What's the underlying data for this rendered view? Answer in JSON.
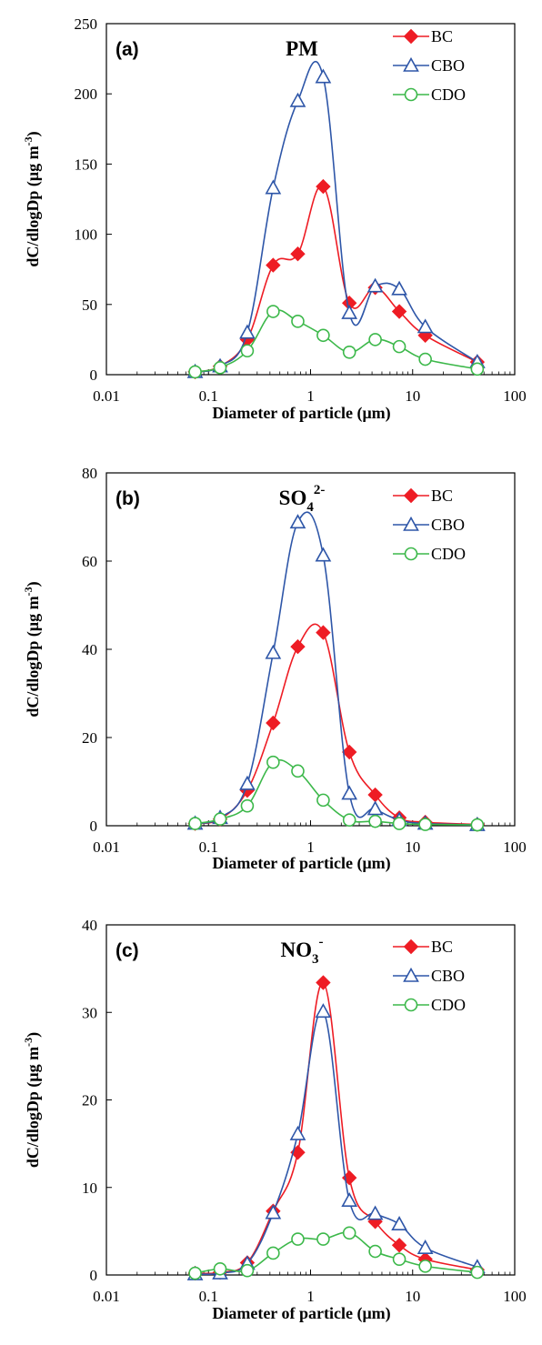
{
  "colors": {
    "BC": "#ee1c24",
    "CBO": "#2e56a8",
    "CDO": "#3cb84a",
    "axis": "#000000"
  },
  "chart_data": [
    {
      "type": "line",
      "panel_label": "(a)",
      "title": "PM",
      "title_sup": "",
      "title_sub": "",
      "xlabel": "Diameter of particle (μm)",
      "ylabel": "dC/dlogDp (μg m",
      "ylabel_sup": "-3",
      "ylabel_end": ")",
      "xscale": "log",
      "xlim": [
        0.01,
        100
      ],
      "ylim": [
        0,
        250
      ],
      "xticks": [
        0.01,
        0.1,
        1,
        10,
        100
      ],
      "xtick_labels": [
        "0.01",
        "0.1",
        "1",
        "10",
        "100"
      ],
      "yticks": [
        0,
        50,
        100,
        150,
        200,
        250
      ],
      "ytick_labels": [
        "0",
        "50",
        "100",
        "150",
        "200",
        "250"
      ],
      "legend": "top-right",
      "grid": false,
      "series": [
        {
          "name": "BC",
          "marker": "diamond",
          "x": [
            0.074,
            0.13,
            0.24,
            0.43,
            0.75,
            1.33,
            2.4,
            4.3,
            7.4,
            13.3,
            43
          ],
          "y": [
            2,
            6,
            25,
            78,
            86,
            134,
            51,
            62,
            45,
            28,
            9
          ]
        },
        {
          "name": "CBO",
          "marker": "triangle",
          "x": [
            0.074,
            0.13,
            0.24,
            0.43,
            0.75,
            1.33,
            2.4,
            4.3,
            7.4,
            13.3,
            43
          ],
          "y": [
            2,
            6,
            30,
            133,
            195,
            212,
            44,
            63,
            61,
            34,
            9
          ]
        },
        {
          "name": "CDO",
          "marker": "circle",
          "x": [
            0.074,
            0.13,
            0.24,
            0.43,
            0.75,
            1.33,
            2.4,
            4.3,
            7.4,
            13.3,
            43
          ],
          "y": [
            2,
            5,
            17,
            45,
            38,
            28,
            16,
            25,
            20,
            11,
            4
          ]
        }
      ]
    },
    {
      "type": "line",
      "panel_label": "(b)",
      "title": "SO",
      "title_sub": "4",
      "title_sup": "2-",
      "xlabel": "Diameter of particle (μm)",
      "ylabel": "dC/dlogDp (μg m",
      "ylabel_sup": "-3",
      "ylabel_end": ")",
      "xscale": "log",
      "xlim": [
        0.01,
        100
      ],
      "ylim": [
        0,
        80
      ],
      "xticks": [
        0.01,
        0.1,
        1,
        10,
        100
      ],
      "xtick_labels": [
        "0.01",
        "0.1",
        "1",
        "10",
        "100"
      ],
      "yticks": [
        0,
        20,
        40,
        60,
        80
      ],
      "ytick_labels": [
        "0",
        "20",
        "40",
        "60",
        "80"
      ],
      "legend": "top-right",
      "grid": false,
      "series": [
        {
          "name": "BC",
          "marker": "diamond",
          "x": [
            0.074,
            0.13,
            0.24,
            0.43,
            0.75,
            1.33,
            2.4,
            4.3,
            7.4,
            13.3,
            43
          ],
          "y": [
            0.5,
            1.5,
            8,
            23.3,
            40.6,
            43.8,
            16.7,
            7,
            1.8,
            0.8,
            0.3
          ]
        },
        {
          "name": "CBO",
          "marker": "triangle",
          "x": [
            0.074,
            0.13,
            0.24,
            0.43,
            0.75,
            1.33,
            2.4,
            4.3,
            7.4,
            13.3,
            43
          ],
          "y": [
            0.5,
            1.8,
            9.5,
            39.2,
            68.8,
            61.3,
            7.3,
            3.8,
            1.3,
            0.5,
            0.2
          ]
        },
        {
          "name": "CDO",
          "marker": "circle",
          "x": [
            0.074,
            0.13,
            0.24,
            0.43,
            0.75,
            1.33,
            2.4,
            4.3,
            7.4,
            13.3,
            43
          ],
          "y": [
            0.5,
            1.5,
            4.5,
            14.4,
            12.4,
            5.8,
            1.3,
            1,
            0.5,
            0.3,
            0.2
          ]
        }
      ]
    },
    {
      "type": "line",
      "panel_label": "(c)",
      "title": "NO",
      "title_sub": "3",
      "title_sup": "-",
      "xlabel": "Diameter of particle (μm)",
      "ylabel": "dC/dlogDp (μg m",
      "ylabel_sup": "-3",
      "ylabel_end": ")",
      "xscale": "log",
      "xlim": [
        0.01,
        100
      ],
      "ylim": [
        0,
        40
      ],
      "xticks": [
        0.01,
        0.1,
        1,
        10,
        100
      ],
      "xtick_labels": [
        "0.01",
        "0.1",
        "1",
        "10",
        "100"
      ],
      "yticks": [
        0,
        10,
        20,
        30,
        40
      ],
      "ytick_labels": [
        "0",
        "10",
        "20",
        "30",
        "40"
      ],
      "legend": "top-right",
      "grid": false,
      "series": [
        {
          "name": "BC",
          "marker": "diamond",
          "x": [
            0.074,
            0.13,
            0.24,
            0.43,
            0.75,
            1.33,
            2.4,
            4.3,
            7.4,
            13.3,
            43
          ],
          "y": [
            0.2,
            0.3,
            1.4,
            7.3,
            14,
            33.4,
            11.1,
            6.1,
            3.4,
            1.8,
            0.6
          ]
        },
        {
          "name": "CBO",
          "marker": "triangle",
          "x": [
            0.074,
            0.13,
            0.24,
            0.43,
            0.75,
            1.33,
            2.4,
            4.3,
            7.4,
            13.3,
            43
          ],
          "y": [
            0.1,
            0.2,
            1.3,
            7.1,
            16.1,
            30.1,
            8.5,
            7,
            5.8,
            3.1,
            0.9
          ]
        },
        {
          "name": "CDO",
          "marker": "circle",
          "x": [
            0.074,
            0.13,
            0.24,
            0.43,
            0.75,
            1.33,
            2.4,
            4.3,
            7.4,
            13.3,
            43
          ],
          "y": [
            0.2,
            0.7,
            0.5,
            2.5,
            4.1,
            4.1,
            4.8,
            2.7,
            1.8,
            1,
            0.3
          ]
        }
      ]
    }
  ]
}
